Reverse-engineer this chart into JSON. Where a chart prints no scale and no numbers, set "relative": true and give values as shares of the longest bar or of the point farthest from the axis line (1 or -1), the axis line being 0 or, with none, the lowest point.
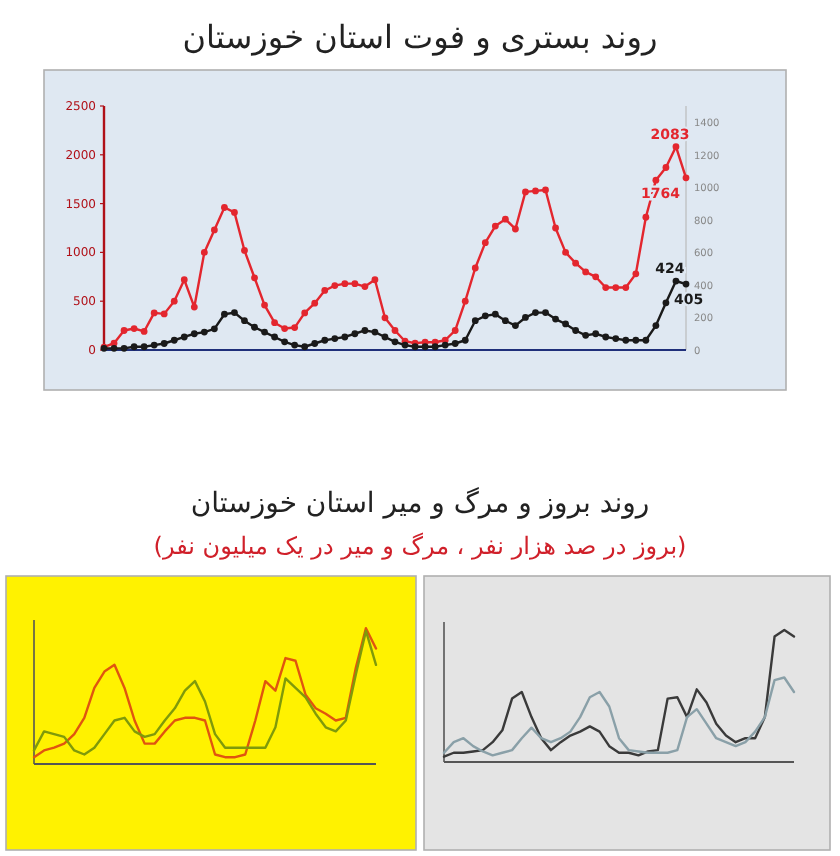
{
  "chart_data": [
    {
      "type": "line",
      "title": "روند بستری و فوت استان خوزستان",
      "categories": [
        null,
        null,
        null,
        null,
        null,
        null,
        null,
        null,
        null,
        null,
        null,
        null,
        null,
        null,
        null,
        null,
        null,
        null,
        null,
        null,
        null,
        null,
        null,
        null,
        null,
        null,
        null,
        null,
        null,
        null,
        null,
        null,
        null,
        null,
        null,
        null,
        null,
        null,
        null,
        null,
        null,
        null,
        null,
        null,
        null,
        null,
        null,
        null,
        null,
        null,
        null,
        null,
        null,
        null,
        null,
        null,
        null,
        null,
        null
      ],
      "ylim": [
        0,
        2500
      ],
      "yticks": [
        0,
        500,
        1000,
        1500,
        2000,
        2500
      ],
      "y2lim": [
        0,
        1500
      ],
      "y2ticks": [
        0,
        200,
        400,
        600,
        800,
        1000,
        1200,
        1400
      ],
      "marker": "circle",
      "series": [
        {
          "color": "#e3262e",
          "values": [
            30,
            70,
            200,
            220,
            190,
            380,
            370,
            500,
            720,
            440,
            1000,
            1230,
            1460,
            1410,
            1020,
            740,
            460,
            280,
            220,
            230,
            380,
            480,
            610,
            660,
            680,
            680,
            650,
            720,
            330,
            200,
            90,
            70,
            80,
            80,
            100,
            200,
            500,
            840,
            1100,
            1270,
            1340,
            1240,
            1620,
            1630,
            1640,
            1250,
            1000,
            890,
            800,
            750,
            640,
            640,
            640,
            780,
            1360,
            1740,
            1870,
            2083,
            1764
          ],
          "value_labels": [
            null,
            null,
            null,
            null,
            null,
            null,
            null,
            null,
            null,
            null,
            null,
            null,
            null,
            null,
            null,
            null,
            null,
            null,
            null,
            null,
            null,
            null,
            null,
            null,
            null,
            null,
            null,
            null,
            null,
            null,
            null,
            null,
            null,
            null,
            null,
            null,
            null,
            null,
            null,
            null,
            null,
            null,
            null,
            null,
            null,
            null,
            null,
            null,
            null,
            null,
            null,
            null,
            null,
            null,
            null,
            null,
            null,
            "2083",
            "1764"
          ]
        },
        {
          "color": "#1a1a1a",
          "axis": "y2",
          "values": [
            10,
            10,
            10,
            20,
            20,
            30,
            40,
            60,
            80,
            100,
            110,
            130,
            220,
            230,
            180,
            140,
            110,
            80,
            50,
            30,
            20,
            40,
            60,
            70,
            80,
            100,
            120,
            110,
            80,
            50,
            30,
            20,
            20,
            20,
            30,
            40,
            60,
            180,
            210,
            220,
            180,
            150,
            200,
            230,
            230,
            190,
            160,
            120,
            90,
            100,
            80,
            70,
            60,
            60,
            60,
            150,
            290,
            424,
            405
          ],
          "value_labels": [
            null,
            null,
            null,
            null,
            null,
            null,
            null,
            null,
            null,
            null,
            null,
            null,
            null,
            null,
            null,
            null,
            null,
            null,
            null,
            null,
            null,
            null,
            null,
            null,
            null,
            null,
            null,
            null,
            null,
            null,
            null,
            null,
            null,
            null,
            null,
            null,
            null,
            null,
            null,
            null,
            null,
            null,
            null,
            null,
            null,
            null,
            null,
            null,
            null,
            null,
            null,
            null,
            null,
            null,
            null,
            null,
            null,
            "424",
            "405"
          ]
        }
      ]
    },
    {
      "type": "line",
      "relative": true,
      "title": "روند بروز و مرگ و میر استان خوزستان",
      "subtitle": "(بروز در صد هزار نفر ، مرگ و میر در یک میلیون نفر)",
      "categories": [
        null,
        null,
        null,
        null,
        null,
        null,
        null,
        null,
        null,
        null,
        null,
        null,
        null,
        null,
        null,
        null,
        null,
        null,
        null,
        null,
        null,
        null,
        null,
        null,
        null,
        null,
        null,
        null,
        null,
        null,
        null,
        null,
        null,
        null,
        null
      ],
      "series": [
        {
          "color": "#e0550f",
          "values": [
            0.05,
            0.1,
            0.12,
            0.15,
            0.22,
            0.34,
            0.56,
            0.68,
            0.73,
            0.56,
            0.32,
            0.15,
            0.15,
            0.24,
            0.32,
            0.34,
            0.34,
            0.32,
            0.07,
            0.05,
            0.05,
            0.07,
            0.32,
            0.61,
            0.54,
            0.78,
            0.76,
            0.51,
            0.41,
            0.37,
            0.32,
            0.34,
            0.71,
            1.0,
            0.85
          ]
        },
        {
          "color": "#7f9a0a",
          "values": [
            0.1,
            0.24,
            0.22,
            0.2,
            0.1,
            0.07,
            0.12,
            0.22,
            0.32,
            0.34,
            0.24,
            0.2,
            0.22,
            0.32,
            0.41,
            0.54,
            0.61,
            0.46,
            0.22,
            0.12,
            0.12,
            0.12,
            0.12,
            0.12,
            0.27,
            0.63,
            0.56,
            0.49,
            0.37,
            0.27,
            0.24,
            0.32,
            0.66,
            0.98,
            0.73
          ]
        }
      ]
    },
    {
      "type": "line",
      "relative": true,
      "categories": [
        null,
        null,
        null,
        null,
        null,
        null,
        null,
        null,
        null,
        null,
        null,
        null,
        null,
        null,
        null,
        null,
        null,
        null,
        null,
        null,
        null,
        null,
        null,
        null,
        null,
        null,
        null,
        null,
        null,
        null,
        null,
        null,
        null,
        null,
        null,
        null,
        null
      ],
      "series": [
        {
          "color": "#3a3a3a",
          "values": [
            0.04,
            0.07,
            0.07,
            0.08,
            0.09,
            0.15,
            0.24,
            0.48,
            0.53,
            0.34,
            0.18,
            0.09,
            0.15,
            0.2,
            0.23,
            0.27,
            0.23,
            0.12,
            0.07,
            0.07,
            0.05,
            0.08,
            0.09,
            0.48,
            0.49,
            0.34,
            0.55,
            0.45,
            0.29,
            0.2,
            0.15,
            0.18,
            0.18,
            0.34,
            0.95,
            1.0,
            0.95
          ]
        },
        {
          "color": "#8aa0a8",
          "values": [
            0.07,
            0.15,
            0.18,
            0.12,
            0.08,
            0.05,
            0.07,
            0.09,
            0.18,
            0.26,
            0.18,
            0.15,
            0.18,
            0.23,
            0.34,
            0.49,
            0.53,
            0.42,
            0.18,
            0.09,
            0.08,
            0.07,
            0.07,
            0.07,
            0.09,
            0.34,
            0.4,
            0.29,
            0.18,
            0.15,
            0.12,
            0.15,
            0.23,
            0.34,
            0.62,
            0.64,
            0.53
          ]
        }
      ]
    }
  ]
}
